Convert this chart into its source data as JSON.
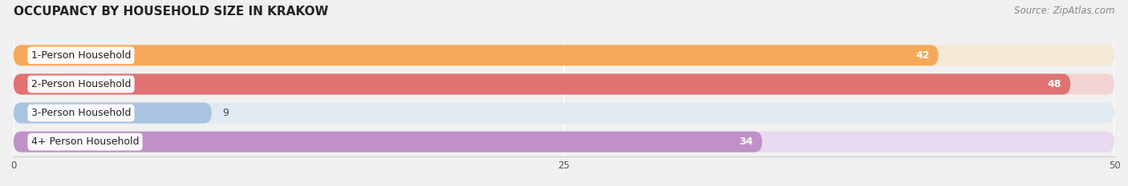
{
  "title": "OCCUPANCY BY HOUSEHOLD SIZE IN KRAKOW",
  "source": "Source: ZipAtlas.com",
  "categories": [
    "1-Person Household",
    "2-Person Household",
    "3-Person Household",
    "4+ Person Household"
  ],
  "values": [
    42,
    48,
    9,
    34
  ],
  "bar_colors": [
    "#F5A85A",
    "#E07272",
    "#A8C4E0",
    "#C090C8"
  ],
  "bar_bg_colors": [
    "#F5E8D5",
    "#F2D4D4",
    "#E0EAF3",
    "#E8D8F0"
  ],
  "row_bg_color": "#EBEBEB",
  "xlim": [
    0,
    50
  ],
  "xticks": [
    0,
    25,
    50
  ],
  "title_fontsize": 11,
  "source_fontsize": 8.5,
  "label_fontsize": 9,
  "value_fontsize": 9,
  "background_color": "#f0f0f0"
}
